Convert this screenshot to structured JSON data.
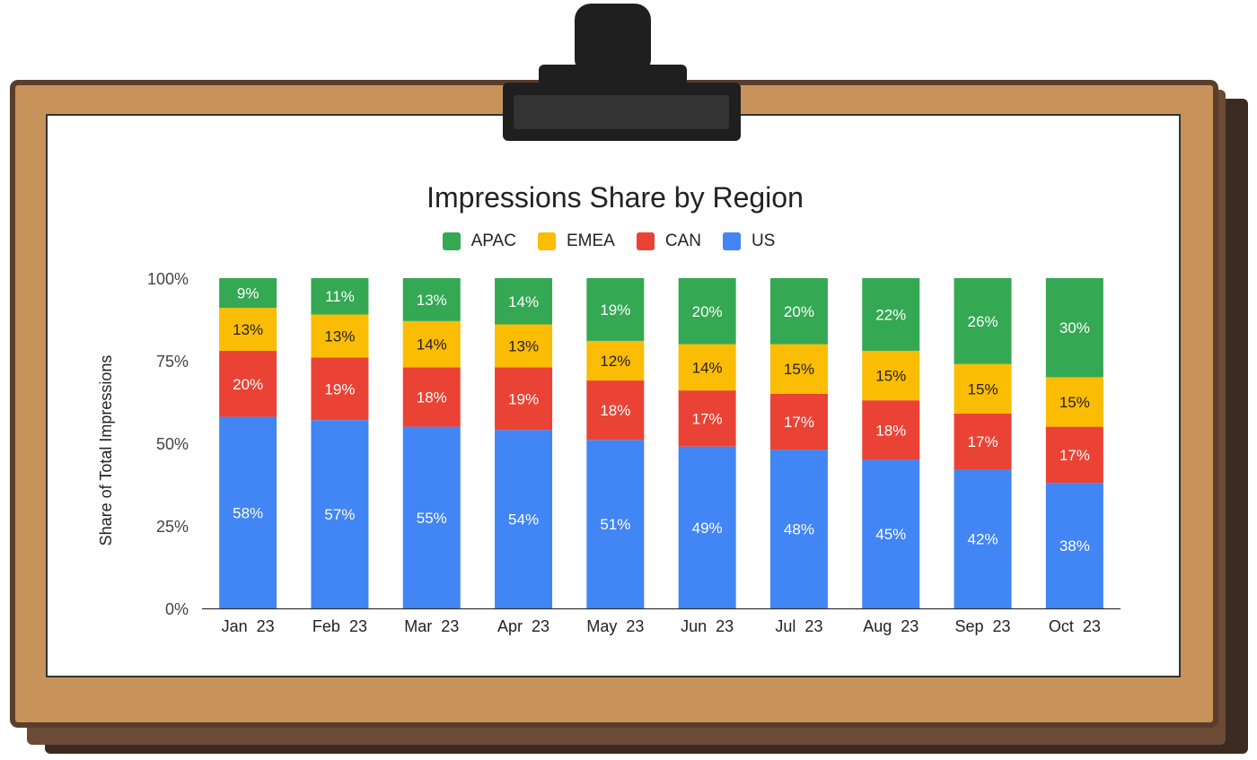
{
  "chart_data": {
    "type": "bar",
    "stacked": true,
    "title": "Impressions Share by Region",
    "xlabel": "",
    "ylabel": "Share of Total Impressions",
    "ylim": [
      0,
      100
    ],
    "y_ticks": [
      "0%",
      "25%",
      "50%",
      "75%",
      "100%"
    ],
    "y_tick_values": [
      0,
      25,
      50,
      75,
      100
    ],
    "categories": [
      "Jan  23",
      "Feb  23",
      "Mar  23",
      "Apr  23",
      "May  23",
      "Jun  23",
      "Jul  23",
      "Aug  23",
      "Sep  23",
      "Oct  23"
    ],
    "legend_position": "top",
    "grid": false,
    "series": [
      {
        "name": "US",
        "color": "#4285f4",
        "label_color": "#ffffff",
        "values": [
          58,
          57,
          55,
          54,
          51,
          49,
          48,
          45,
          42,
          38
        ]
      },
      {
        "name": "CAN",
        "color": "#ea4335",
        "label_color": "#ffffff",
        "values": [
          20,
          19,
          18,
          19,
          18,
          17,
          17,
          18,
          17,
          17
        ]
      },
      {
        "name": "EMEA",
        "color": "#fbbc04",
        "label_color": "#222222",
        "values": [
          13,
          13,
          14,
          13,
          12,
          14,
          15,
          15,
          15,
          15
        ]
      },
      {
        "name": "APAC",
        "color": "#34a853",
        "label_color": "#ffffff",
        "values": [
          9,
          11,
          13,
          14,
          19,
          20,
          20,
          22,
          26,
          30
        ]
      }
    ],
    "legend_order": [
      "APAC",
      "EMEA",
      "CAN",
      "US"
    ]
  },
  "theme": {
    "board_color": "#c8935a",
    "board_shadow": "#5a3d2b",
    "paper_color": "#ffffff",
    "clip_color": "#1f1f1f"
  }
}
